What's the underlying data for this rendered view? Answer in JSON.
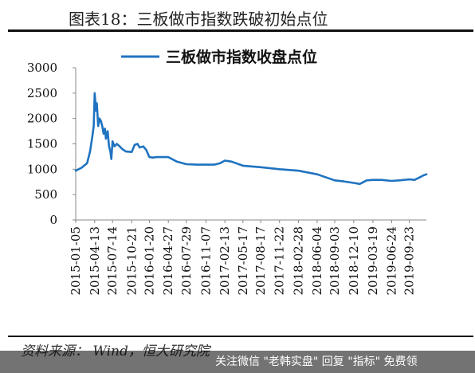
{
  "title": "图表18：三板做市指数跌破初始点位",
  "source": "资料来源：  Wind，恒大研究院",
  "footer": "关注微信 \"老韩实盘\" 回复 \"指标\" 免费领",
  "colors": {
    "series": "#1f73c0",
    "axis": "#888888",
    "text": "#111111"
  },
  "chart_data": {
    "type": "line",
    "series": [
      {
        "name": "三板做市指数收盘点位",
        "x": [
          "2015-01-05",
          "2015-02-05",
          "2015-03-05",
          "2015-03-20",
          "2015-04-01",
          "2015-04-08",
          "2015-04-13",
          "2015-04-20",
          "2015-04-24",
          "2015-05-01",
          "2015-05-08",
          "2015-05-15",
          "2015-05-22",
          "2015-05-29",
          "2015-06-05",
          "2015-06-10",
          "2015-06-19",
          "2015-06-26",
          "2015-07-03",
          "2015-07-08",
          "2015-07-14",
          "2015-07-24",
          "2015-08-05",
          "2015-08-20",
          "2015-09-02",
          "2015-09-21",
          "2015-10-21",
          "2015-11-05",
          "2015-11-20",
          "2015-12-01",
          "2015-12-20",
          "2016-01-04",
          "2016-01-20",
          "2016-02-05",
          "2016-03-01",
          "2016-04-27",
          "2016-06-10",
          "2016-07-29",
          "2016-09-20",
          "2016-11-07",
          "2016-12-20",
          "2017-01-20",
          "2017-02-13",
          "2017-03-20",
          "2017-05-17",
          "2017-08-17",
          "2017-11-22",
          "2018-02-28",
          "2018-06-04",
          "2018-09-03",
          "2018-10-20",
          "2018-12-10",
          "2019-01-10",
          "2019-02-15",
          "2019-03-19",
          "2019-05-01",
          "2019-06-24",
          "2019-08-01",
          "2019-09-23",
          "2019-10-20",
          "2019-11-10",
          "2019-12-05",
          "2019-12-20"
        ],
        "y": [
          970,
          1030,
          1120,
          1350,
          1650,
          1850,
          2500,
          2150,
          2300,
          1850,
          2000,
          1950,
          1850,
          1700,
          1800,
          1600,
          1750,
          1450,
          1350,
          1200,
          1550,
          1450,
          1500,
          1450,
          1400,
          1350,
          1340,
          1480,
          1500,
          1430,
          1450,
          1380,
          1240,
          1230,
          1240,
          1240,
          1150,
          1100,
          1090,
          1090,
          1090,
          1120,
          1170,
          1150,
          1070,
          1040,
          1000,
          970,
          900,
          780,
          760,
          730,
          710,
          780,
          790,
          790,
          770,
          780,
          800,
          790,
          830,
          880,
          900
        ]
      }
    ],
    "x_tick_labels": [
      "2015-01-05",
      "2015-04-13",
      "2015-07-14",
      "2015-10-21",
      "2016-01-20",
      "2016-04-27",
      "2016-07-29",
      "2016-11-07",
      "2017-02-13",
      "2017-05-17",
      "2017-08-17",
      "2017-11-22",
      "2018-02-28",
      "2018-06-04",
      "2018-09-03",
      "2018-12-10",
      "2019-03-19",
      "2019-06-24",
      "2019-09-23"
    ],
    "y_ticks": [
      0,
      500,
      1000,
      1500,
      2000,
      2500,
      3000
    ],
    "ylim": [
      0,
      3000
    ],
    "xlim": [
      "2015-01-05",
      "2019-12-20"
    ],
    "grid": false,
    "legend_position": "top"
  }
}
